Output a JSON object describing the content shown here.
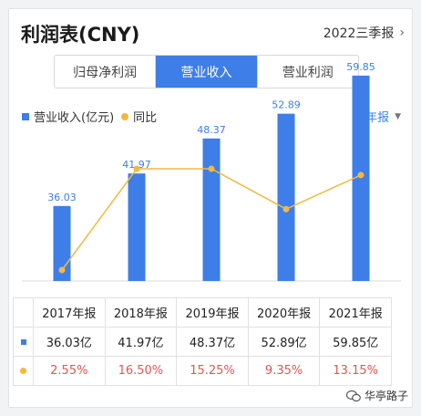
{
  "header": {
    "title": "利润表(CNY)",
    "period": "2022三季报"
  },
  "tabs": [
    {
      "label": "归母净利润",
      "active": false
    },
    {
      "label": "营业收入",
      "active": true
    },
    {
      "label": "营业利润",
      "active": false
    }
  ],
  "legend": {
    "bar_label": "营业收入(亿元)",
    "line_label": "同比",
    "frequency": "年报"
  },
  "colors": {
    "bar": "#3d7ee8",
    "line": "#f5b83d",
    "growth_text": "#e25555"
  },
  "chart_data": {
    "type": "bar",
    "categories": [
      "2017年报",
      "2018年报",
      "2019年报",
      "2020年报",
      "2021年报"
    ],
    "series": [
      {
        "name": "营业收入(亿元)",
        "type": "bar",
        "values": [
          36.03,
          41.97,
          48.37,
          52.89,
          59.85
        ]
      },
      {
        "name": "同比",
        "type": "line",
        "values": [
          2.55,
          16.5,
          15.25,
          9.35,
          13.15
        ]
      }
    ],
    "data_labels": [
      "36.03",
      "41.97",
      "48.37",
      "52.89",
      "59.85"
    ]
  },
  "table": {
    "headers": [
      "2017年报",
      "2018年报",
      "2019年报",
      "2020年报",
      "2021年报"
    ],
    "revenue_row": [
      "36.03亿",
      "41.97亿",
      "48.37亿",
      "52.89亿",
      "59.85亿"
    ],
    "growth_row": [
      "2.55%",
      "16.50%",
      "15.25%",
      "9.35%",
      "13.15%"
    ]
  },
  "watermark": {
    "text": "华亭路子",
    "icon": "wechat-icon"
  }
}
